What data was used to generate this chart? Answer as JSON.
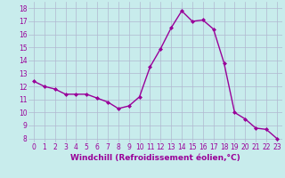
{
  "x": [
    0,
    1,
    2,
    3,
    4,
    5,
    6,
    7,
    8,
    9,
    10,
    11,
    12,
    13,
    14,
    15,
    16,
    17,
    18,
    19,
    20,
    21,
    22,
    23
  ],
  "y": [
    12.4,
    12.0,
    11.8,
    11.4,
    11.4,
    11.4,
    11.1,
    10.8,
    10.3,
    10.5,
    11.2,
    13.5,
    14.9,
    16.5,
    17.8,
    17.0,
    17.1,
    16.4,
    13.8,
    10.0,
    9.5,
    8.8,
    8.7,
    8.0
  ],
  "xlim": [
    -0.5,
    23.5
  ],
  "ylim": [
    7.7,
    18.5
  ],
  "yticks": [
    8,
    9,
    10,
    11,
    12,
    13,
    14,
    15,
    16,
    17,
    18
  ],
  "xticks": [
    0,
    1,
    2,
    3,
    4,
    5,
    6,
    7,
    8,
    9,
    10,
    11,
    12,
    13,
    14,
    15,
    16,
    17,
    18,
    19,
    20,
    21,
    22,
    23
  ],
  "xlabel": "Windchill (Refroidissement éolien,°C)",
  "line_color": "#990099",
  "marker": "D",
  "marker_size": 2.0,
  "line_width": 1.0,
  "bg_color": "#c8ecec",
  "grid_color": "#b0b8d0",
  "tick_fontsize": 5.5,
  "label_fontsize": 6.5
}
